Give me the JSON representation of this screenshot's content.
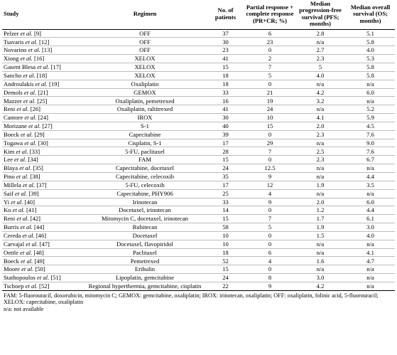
{
  "table": {
    "headers": [
      "Study",
      "Regimen",
      "No. of patients",
      "Partial response + complete response (PR+CR; %)",
      "Median progression-free survival (PFS; months)",
      "Median overall survival (OS; months)"
    ],
    "rows": [
      {
        "study_name": "Pelzer ",
        "etal": "et al.",
        "ref": " [9]",
        "regimen": "OFF",
        "patients": "37",
        "response": "6",
        "pfs": "2.8",
        "os": "5.1"
      },
      {
        "study_name": "Tsavaris ",
        "etal": "et al.",
        "ref": " [12]",
        "regimen": "OFF",
        "patients": "30",
        "response": "23",
        "pfs": "n/a",
        "os": "5.8"
      },
      {
        "study_name": "Novarino ",
        "etal": "et al.",
        "ref": " [13]",
        "regimen": "OFF",
        "patients": "23",
        "response": "0",
        "pfs": "2.7",
        "os": "4.0"
      },
      {
        "study_name": "Xiong ",
        "etal": "et al.",
        "ref": " [16]",
        "regimen": "XELOX",
        "patients": "41",
        "response": "2",
        "pfs": "2.3",
        "os": "5.3"
      },
      {
        "study_name": "Gasent Blesa ",
        "etal": "et al.",
        "ref": " [17]",
        "regimen": "XELOX",
        "patients": "15",
        "response": "7",
        "pfs": "5",
        "os": "5.8"
      },
      {
        "study_name": "Sancho ",
        "etal": "et al.",
        "ref": " [18]",
        "regimen": "XELOX",
        "patients": "18",
        "response": "5",
        "pfs": "4.0",
        "os": "5.8"
      },
      {
        "study_name": "Androulakis ",
        "etal": "et al.",
        "ref": " [19]",
        "regimen": "Oxaliplatin",
        "patients": "18",
        "response": "0",
        "pfs": "n/a",
        "os": "n/a"
      },
      {
        "study_name": "Demols ",
        "etal": "et al.",
        "ref": " [21]",
        "regimen": "GEMOX",
        "patients": "33",
        "response": "21",
        "pfs": "4.2",
        "os": "6.0"
      },
      {
        "study_name": "Mazzer ",
        "etal": "et al.",
        "ref": " [25]",
        "regimen": "Oxaliplatin, pemetrexed",
        "patients": "16",
        "response": "19",
        "pfs": "3.2",
        "os": "n/a"
      },
      {
        "study_name": "Reni ",
        "etal": "et al.",
        "ref": " [26]",
        "regimen": "Oxaliplatin, raltitrexed",
        "patients": "41",
        "response": "24",
        "pfs": "n/a",
        "os": "5.2"
      },
      {
        "study_name": "Cantore ",
        "etal": "et al.",
        "ref": " [24]",
        "regimen": "IROX",
        "patients": "30",
        "response": "10",
        "pfs": "4.1",
        "os": "5.9"
      },
      {
        "study_name": "Morizane ",
        "etal": "et al.",
        "ref": " [27]",
        "regimen": "S-1",
        "patients": "40",
        "response": "15",
        "pfs": "2.0",
        "os": "4.5"
      },
      {
        "study_name": "Boeck ",
        "etal": "et al.",
        "ref": " [29]",
        "regimen": "Capecitabine",
        "patients": "39",
        "response": "0",
        "pfs": "2.3",
        "os": "7.6"
      },
      {
        "study_name": "Togawa ",
        "etal": "et al.",
        "ref": " [30]",
        "regimen": "Cisplatin, S-1",
        "patients": "17",
        "response": "29",
        "pfs": "n/a",
        "os": "9.0"
      },
      {
        "study_name": "Kim ",
        "etal": "et al.",
        "ref": " [33]",
        "regimen": "5-FU, paclitaxel",
        "patients": "28",
        "response": "7",
        "pfs": "2.5",
        "os": "7.6"
      },
      {
        "study_name": "Lee ",
        "etal": "et al.",
        "ref": " [34]",
        "regimen": "FAM",
        "patients": "15",
        "response": "0",
        "pfs": "2.3",
        "os": "6.7"
      },
      {
        "study_name": "Blaya ",
        "etal": "et al.",
        "ref": " [35]",
        "regimen": "Capecitabine, docetaxel",
        "patients": "24",
        "response": "12.5",
        "pfs": "n/a",
        "os": "n/a"
      },
      {
        "study_name": "Pino ",
        "etal": "et al.",
        "ref": " [38]",
        "regimen": "Capecitabine, celecoxib",
        "patients": "35",
        "response": "9",
        "pfs": "n/a",
        "os": "4.4"
      },
      {
        "study_name": "Millela ",
        "etal": "et al.",
        "ref": " [37]",
        "regimen": "5-FU, celecoxib",
        "patients": "17",
        "response": "12",
        "pfs": "1.9",
        "os": "3.5"
      },
      {
        "study_name": "Saif ",
        "etal": "et al.",
        "ref": " [39]",
        "regimen": "Capecitabine, PHY906",
        "patients": "25",
        "response": "4",
        "pfs": "n/a",
        "os": "n/a"
      },
      {
        "study_name": "Yi ",
        "etal": "et al.",
        "ref": " [40]",
        "regimen": "Irinotecan",
        "patients": "33",
        "response": "9",
        "pfs": "2.0",
        "os": "6.0"
      },
      {
        "study_name": "Ko ",
        "etal": "et al.",
        "ref": " [41]",
        "regimen": "Docetaxel, irinotecan",
        "patients": "14",
        "response": "0",
        "pfs": "1.2",
        "os": "4.4"
      },
      {
        "study_name": "Reni ",
        "etal": "et al.",
        "ref": " [42]",
        "regimen": "Mitomycin C, docetaxel, irinotecan",
        "patients": "15",
        "response": "7",
        "pfs": "1.7",
        "os": "6.1"
      },
      {
        "study_name": "Burris ",
        "etal": "et al.",
        "ref": " [44]",
        "regimen": "Rubitecan",
        "patients": "58",
        "response": "5",
        "pfs": "1.9",
        "os": "3.0"
      },
      {
        "study_name": "Cereda ",
        "etal": "et al.",
        "ref": " [46]",
        "regimen": "Docetaxel",
        "patients": "10",
        "response": "0",
        "pfs": "1.5",
        "os": "4.0"
      },
      {
        "study_name": "Carvajal ",
        "etal": "et al.",
        "ref": " [47]",
        "regimen": "Docetaxel, flavopiridol",
        "patients": "10",
        "response": "0",
        "pfs": "n/a",
        "os": "n/a"
      },
      {
        "study_name": "Oettle ",
        "etal": "et al.",
        "ref": " [48]",
        "regimen": "Paclitaxel",
        "patients": "18",
        "response": "6",
        "pfs": "n/a",
        "os": "4.1"
      },
      {
        "study_name": "Boeck ",
        "etal": "et al.",
        "ref": " [49]",
        "regimen": "Pemetrexed",
        "patients": "52",
        "response": "4",
        "pfs": "1.6",
        "os": "4.7"
      },
      {
        "study_name": "Moore ",
        "etal": "et al.",
        "ref": " [50]",
        "regimen": "Eribulin",
        "patients": "15",
        "response": "0",
        "pfs": "n/a",
        "os": "n/a"
      },
      {
        "study_name": "Stathopoulos ",
        "etal": "et al.",
        "ref": " [51]",
        "regimen": "Lipoplatin, gemcitabine",
        "patients": "24",
        "response": "8",
        "pfs": "3.0",
        "os": "n/a"
      },
      {
        "study_name": "Tschoep ",
        "etal": "et al.",
        "ref": " [52]",
        "regimen": "Regional hyperthermia, gemcitabine, cisplatin",
        "patients": "22",
        "response": "9",
        "pfs": "4.2",
        "os": "n/a"
      }
    ]
  },
  "footnotes": {
    "abbreviations": "FAM: 5-fluorouracil, doxorubicin, mitomycin C; GEMOX: gemcitabine, oxaliplatin; IROX: irinotecan, oxaliplatin; OFF: oxaliplatin, folinic acid, 5-fluorouracil; XELOX: capecitabine, oxaliplatin",
    "na": "n/a: not available"
  }
}
